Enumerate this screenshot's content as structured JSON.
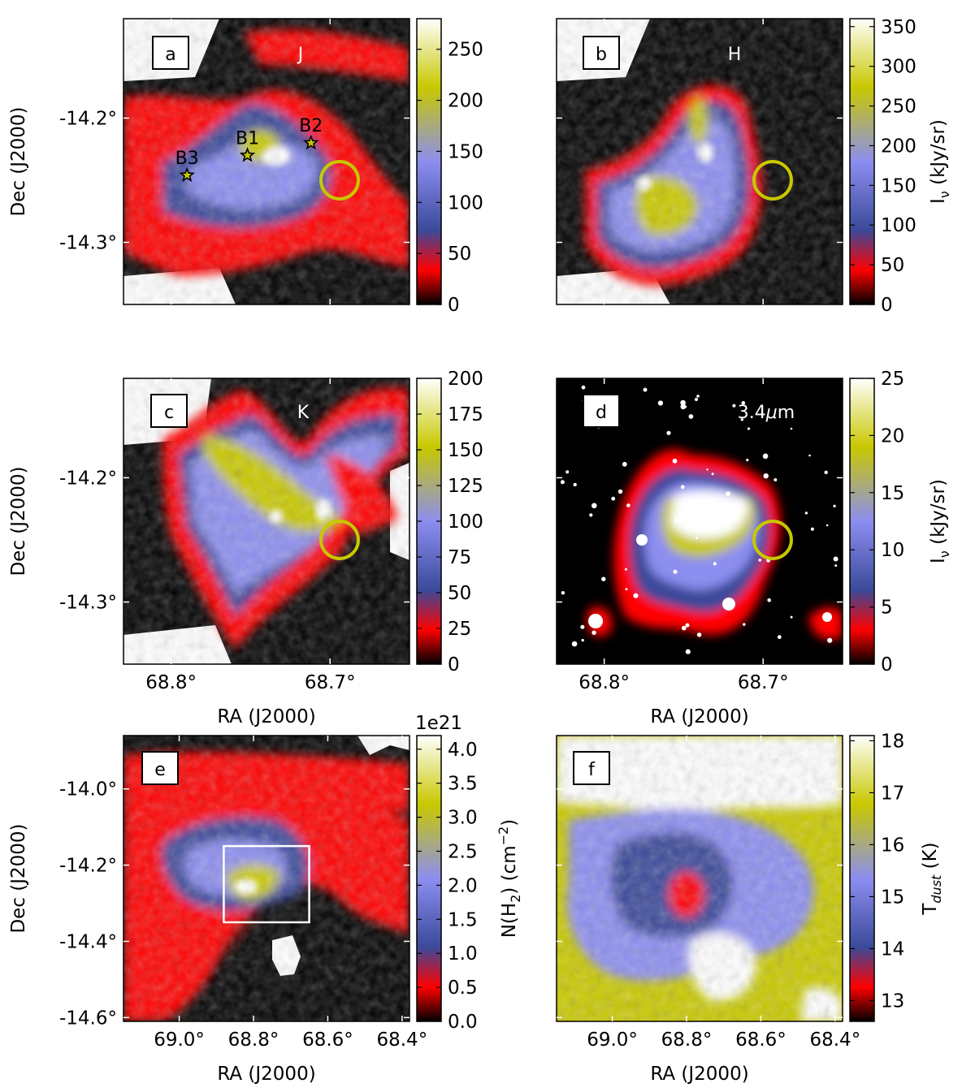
{
  "chart_data": [
    {
      "type": "heatmap",
      "panel_label": "a",
      "band": "J",
      "ylabel": "Dec (J2000)",
      "yticks": [
        "-14.2°",
        "-14.3°"
      ],
      "colorbar": {
        "ticks": [
          "0",
          "50",
          "100",
          "150",
          "200",
          "250"
        ],
        "range": [
          0,
          280
        ]
      },
      "markers": [
        {
          "label": "B1",
          "ra": 68.752,
          "dec": -14.23
        },
        {
          "label": "B2",
          "ra": 68.712,
          "dec": -14.22
        },
        {
          "label": "B3",
          "ra": 68.79,
          "dec": -14.246
        }
      ],
      "circle": {
        "ra": 68.694,
        "dec": -14.25
      }
    },
    {
      "type": "heatmap",
      "panel_label": "b",
      "band": "H",
      "colorbar": {
        "ticks": [
          "0",
          "50",
          "100",
          "150",
          "200",
          "250",
          "300",
          "350"
        ],
        "range": [
          0,
          360
        ],
        "label": "I",
        "label_sub": "ν",
        "label_tail": " (kJy/sr)"
      },
      "circle": {
        "ra": 68.694,
        "dec": -14.25
      }
    },
    {
      "type": "heatmap",
      "panel_label": "c",
      "band": "K",
      "ylabel": "Dec (J2000)",
      "yticks": [
        "-14.2°",
        "-14.3°"
      ],
      "xlabel": "RA (J2000)",
      "xticks": [
        "68.8°",
        "68.7°"
      ],
      "colorbar": {
        "ticks": [
          "0",
          "25",
          "50",
          "75",
          "100",
          "125",
          "150",
          "175",
          "200"
        ],
        "range": [
          0,
          200
        ]
      },
      "circle": {
        "ra": 68.694,
        "dec": -14.25
      }
    },
    {
      "type": "heatmap",
      "panel_label": "d",
      "band_pre": "3.4",
      "band_mu": "μ",
      "band_post": "m",
      "xlabel": "RA (J2000)",
      "xticks": [
        "68.8°",
        "68.7°"
      ],
      "colorbar": {
        "ticks": [
          "0",
          "5",
          "10",
          "15",
          "20",
          "25"
        ],
        "range": [
          0,
          25
        ],
        "label": "I",
        "label_sub": "ν",
        "label_tail": " (kJy/sr)"
      },
      "circle": {
        "ra": 68.694,
        "dec": -14.25
      }
    },
    {
      "type": "heatmap",
      "panel_label": "e",
      "ylabel": "Dec (J2000)",
      "yticks": [
        "-14.0°",
        "-14.2°",
        "-14.4°",
        "-14.6°"
      ],
      "xlabel": "RA (J2000)",
      "xticks": [
        "69.0°",
        "68.8°",
        "68.6°",
        "68.4°"
      ],
      "colorbar": {
        "ticks": [
          "0.0",
          "0.5",
          "1.0",
          "1.5",
          "2.0",
          "2.5",
          "3.0",
          "3.5",
          "4.0"
        ],
        "range": [
          0,
          4.2
        ],
        "exponent": "1e21",
        "label_pre": "N(H",
        "label_sub": "2",
        "label_mid": ") (cm",
        "label_sup": "−2",
        "label_end": ")"
      },
      "box": {
        "ra": [
          68.88,
          68.65
        ],
        "dec": [
          -14.15,
          -14.35
        ]
      }
    },
    {
      "type": "heatmap",
      "panel_label": "f",
      "xlabel": "RA (J2000)",
      "xticks": [
        "69.0°",
        "68.8°",
        "68.6°",
        "68.4°"
      ],
      "colorbar": {
        "ticks": [
          "13",
          "14",
          "15",
          "16",
          "17",
          "18"
        ],
        "range": [
          12.6,
          18.1
        ],
        "label_pre": "T",
        "label_sub": "dust",
        "label_end": " (K)"
      }
    }
  ],
  "colors": {
    "cmap": [
      "#000000",
      "#ff0000",
      "#3a4a9a",
      "#8c8ef0",
      "#c8c800",
      "#ffffff"
    ],
    "circle": "#c8c800",
    "box": "#ffffff"
  }
}
